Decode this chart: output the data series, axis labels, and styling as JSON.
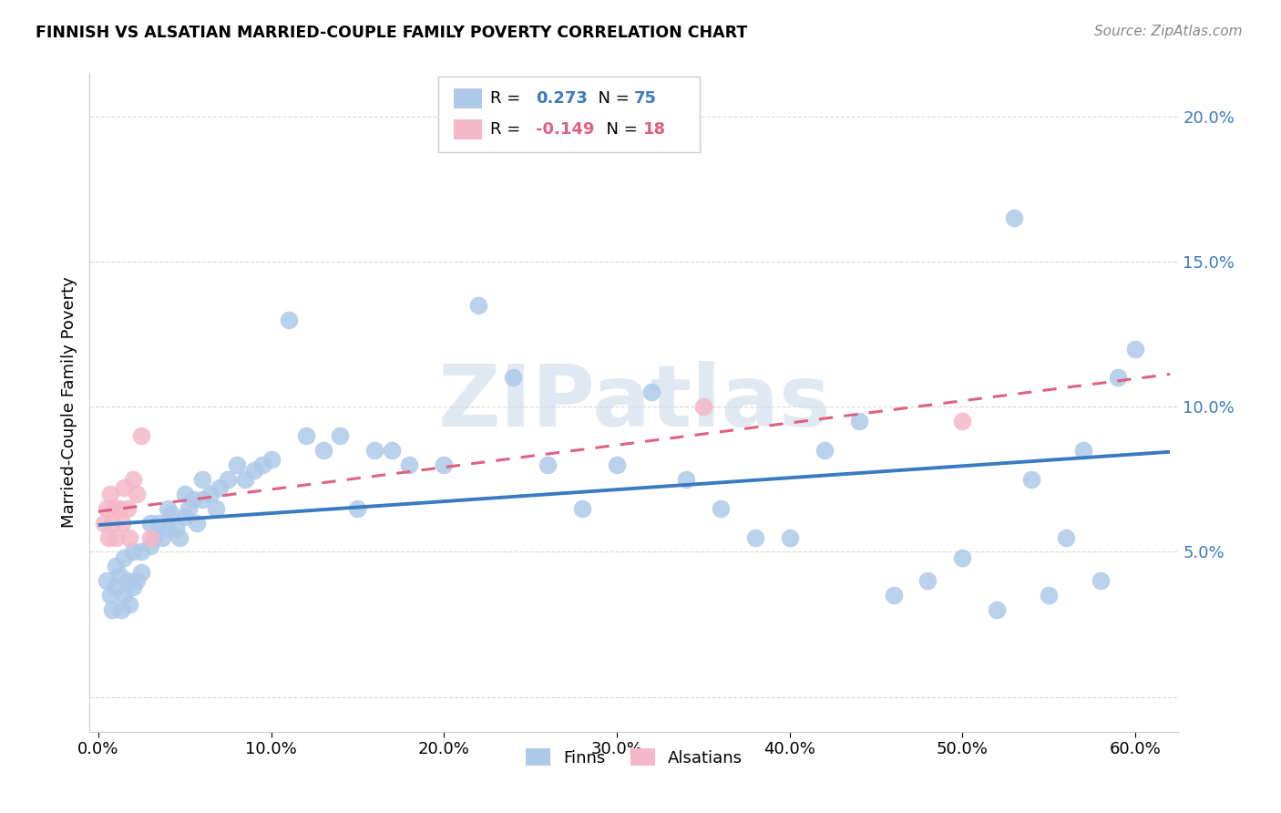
{
  "title": "FINNISH VS ALSATIAN MARRIED-COUPLE FAMILY POVERTY CORRELATION CHART",
  "source": "Source: ZipAtlas.com",
  "ylabel": "Married-Couple Family Poverty",
  "blue_color": "#aec9e8",
  "pink_color": "#f4b8c8",
  "line_blue": "#3a7abf",
  "line_pink": "#e06080",
  "legend_blue_R": "0.273",
  "legend_blue_N": "75",
  "legend_pink_R": "-0.149",
  "legend_pink_N": "18",
  "finns_x": [
    0.005,
    0.007,
    0.008,
    0.01,
    0.01,
    0.012,
    0.013,
    0.015,
    0.015,
    0.017,
    0.018,
    0.02,
    0.02,
    0.022,
    0.025,
    0.025,
    0.03,
    0.03,
    0.032,
    0.035,
    0.037,
    0.04,
    0.04,
    0.042,
    0.045,
    0.047,
    0.05,
    0.05,
    0.052,
    0.055,
    0.057,
    0.06,
    0.06,
    0.065,
    0.068,
    0.07,
    0.075,
    0.08,
    0.085,
    0.09,
    0.095,
    0.1,
    0.11,
    0.12,
    0.13,
    0.14,
    0.15,
    0.16,
    0.17,
    0.18,
    0.2,
    0.22,
    0.24,
    0.26,
    0.28,
    0.3,
    0.32,
    0.34,
    0.36,
    0.38,
    0.4,
    0.42,
    0.44,
    0.46,
    0.48,
    0.5,
    0.52,
    0.54,
    0.56,
    0.58,
    0.6,
    0.53,
    0.55,
    0.57,
    0.59
  ],
  "finns_y": [
    0.04,
    0.035,
    0.03,
    0.045,
    0.038,
    0.042,
    0.03,
    0.048,
    0.035,
    0.04,
    0.032,
    0.05,
    0.038,
    0.04,
    0.05,
    0.043,
    0.06,
    0.052,
    0.055,
    0.06,
    0.055,
    0.065,
    0.058,
    0.063,
    0.058,
    0.055,
    0.07,
    0.062,
    0.065,
    0.068,
    0.06,
    0.075,
    0.068,
    0.07,
    0.065,
    0.072,
    0.075,
    0.08,
    0.075,
    0.078,
    0.08,
    0.082,
    0.13,
    0.09,
    0.085,
    0.09,
    0.065,
    0.085,
    0.085,
    0.08,
    0.08,
    0.135,
    0.11,
    0.08,
    0.065,
    0.08,
    0.105,
    0.075,
    0.065,
    0.055,
    0.055,
    0.085,
    0.095,
    0.035,
    0.04,
    0.048,
    0.03,
    0.075,
    0.055,
    0.04,
    0.12,
    0.165,
    0.035,
    0.085,
    0.11
  ],
  "alsatians_x": [
    0.003,
    0.005,
    0.006,
    0.007,
    0.008,
    0.009,
    0.01,
    0.012,
    0.014,
    0.015,
    0.017,
    0.018,
    0.02,
    0.022,
    0.025,
    0.03,
    0.35,
    0.5
  ],
  "alsatians_y": [
    0.06,
    0.065,
    0.055,
    0.07,
    0.06,
    0.065,
    0.055,
    0.065,
    0.06,
    0.072,
    0.065,
    0.055,
    0.075,
    0.07,
    0.09,
    0.055,
    0.1,
    0.095
  ],
  "watermark_text": "ZIPatlas",
  "grid_color": "#d8d8d8",
  "xlim": [
    -0.005,
    0.625
  ],
  "ylim": [
    -0.012,
    0.215
  ],
  "ytick_positions": [
    0.0,
    0.05,
    0.1,
    0.15,
    0.2
  ],
  "ytick_labels": [
    "",
    "5.0%",
    "10.0%",
    "15.0%",
    "20.0%"
  ],
  "xtick_positions": [
    0.0,
    0.1,
    0.2,
    0.3,
    0.4,
    0.5,
    0.6
  ],
  "xtick_labels": [
    "0.0%",
    "10.0%",
    "20.0%",
    "30.0%",
    "40.0%",
    "50.0%",
    "60.0%"
  ]
}
